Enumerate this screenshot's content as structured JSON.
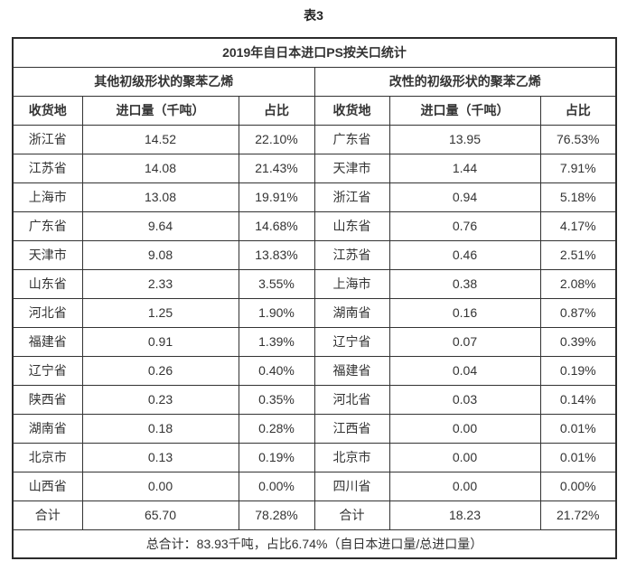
{
  "title": "表3",
  "table": {
    "caption": "2019年自日本进口PS按关口统计",
    "groups": [
      "其他初级形状的聚苯乙烯",
      "改性的初级形状的聚苯乙烯"
    ],
    "columns": [
      "收货地",
      "进口量（千吨）",
      "占比"
    ],
    "rows": [
      [
        "浙江省",
        "14.52",
        "22.10%",
        "广东省",
        "13.95",
        "76.53%"
      ],
      [
        "江苏省",
        "14.08",
        "21.43%",
        "天津市",
        "1.44",
        "7.91%"
      ],
      [
        "上海市",
        "13.08",
        "19.91%",
        "浙江省",
        "0.94",
        "5.18%"
      ],
      [
        "广东省",
        "9.64",
        "14.68%",
        "山东省",
        "0.76",
        "4.17%"
      ],
      [
        "天津市",
        "9.08",
        "13.83%",
        "江苏省",
        "0.46",
        "2.51%"
      ],
      [
        "山东省",
        "2.33",
        "3.55%",
        "上海市",
        "0.38",
        "2.08%"
      ],
      [
        "河北省",
        "1.25",
        "1.90%",
        "湖南省",
        "0.16",
        "0.87%"
      ],
      [
        "福建省",
        "0.91",
        "1.39%",
        "辽宁省",
        "0.07",
        "0.39%"
      ],
      [
        "辽宁省",
        "0.26",
        "0.40%",
        "福建省",
        "0.04",
        "0.19%"
      ],
      [
        "陕西省",
        "0.23",
        "0.35%",
        "河北省",
        "0.03",
        "0.14%"
      ],
      [
        "湖南省",
        "0.18",
        "0.28%",
        "江西省",
        "0.00",
        "0.01%"
      ],
      [
        "北京市",
        "0.13",
        "0.19%",
        "北京市",
        "0.00",
        "0.01%"
      ],
      [
        "山西省",
        "0.00",
        "0.00%",
        "四川省",
        "0.00",
        "0.00%"
      ]
    ],
    "total_row": [
      "合计",
      "65.70",
      "78.28%",
      "合计",
      "18.23",
      "21.72%"
    ],
    "footer": "总合计：83.93千吨，占比6.74%（自日本进口量/总进口量）"
  }
}
